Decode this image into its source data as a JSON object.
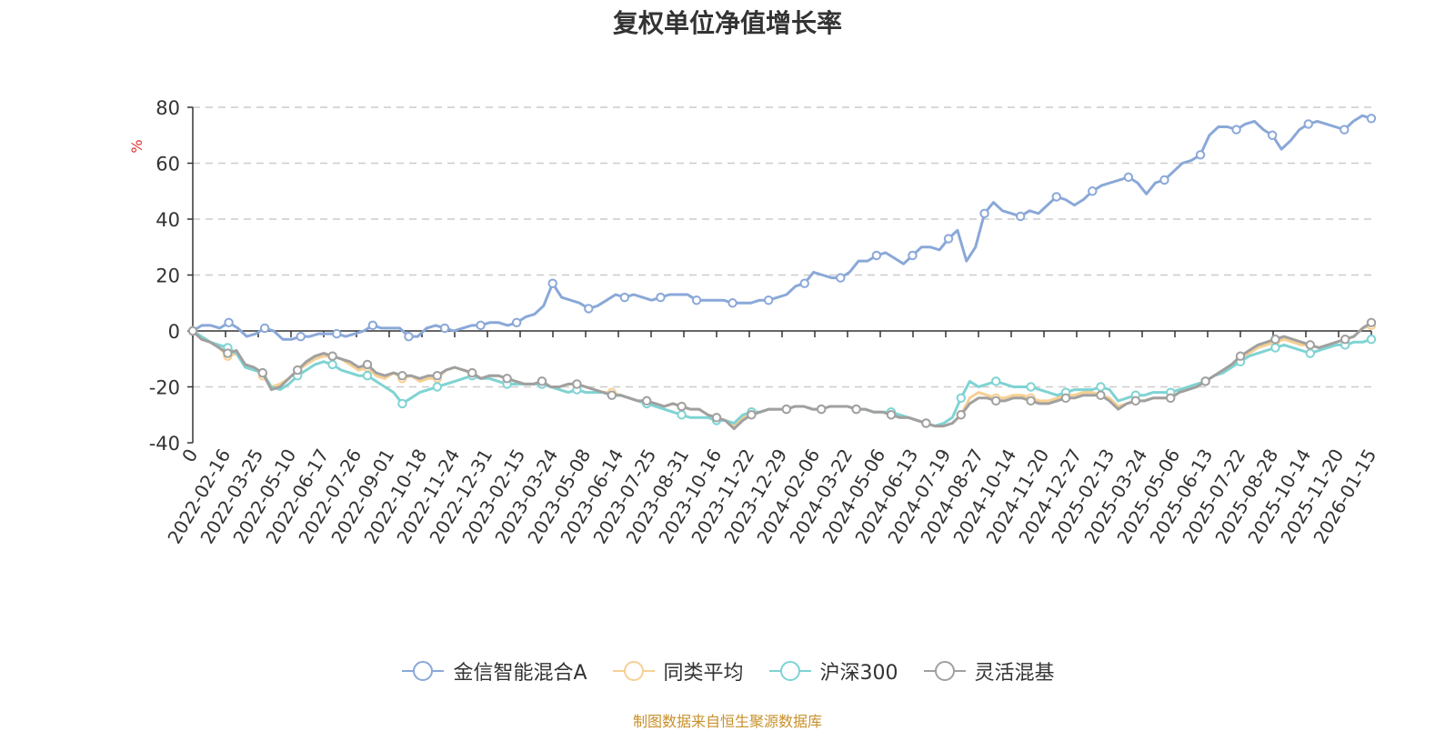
{
  "title": "复权单位净值增长率",
  "footer": "制图数据来自恒生聚源数据库",
  "chart_data": {
    "type": "line",
    "title": "复权单位净值增长率",
    "ylabel": "%",
    "ylim": [
      -40,
      80
    ],
    "yticks": [
      80,
      60,
      40,
      20,
      0,
      -20,
      -40
    ],
    "grid": true,
    "legend_position": "bottom",
    "xticks": [
      "0",
      "2022-02-16",
      "2022-03-25",
      "2022-05-10",
      "2022-06-17",
      "2022-07-26",
      "2022-09-01",
      "2022-10-18",
      "2022-11-24",
      "2022-12-31",
      "2023-02-15",
      "2023-03-24",
      "2023-05-08",
      "2023-06-14",
      "2023-07-25",
      "2023-08-31",
      "2023-10-16",
      "2023-11-22",
      "2023-12-29",
      "2024-02-06",
      "2024-03-22",
      "2024-05-06",
      "2024-06-13",
      "2024-07-19",
      "2024-08-27",
      "2024-10-14",
      "2024-11-20",
      "2024-12-27",
      "2025-02-13",
      "2025-03-24",
      "2025-05-06",
      "2025-06-13",
      "2025-07-22",
      "2025-08-28",
      "2025-10-14",
      "2025-11-20",
      "2026-01-15"
    ],
    "series": [
      {
        "name": "金信智能混合A",
        "color": "#8aa8d8",
        "values": [
          0,
          2,
          2,
          1,
          3,
          1,
          -2,
          -1,
          1,
          0,
          -3,
          -3,
          -2,
          -2,
          -1,
          -1,
          -1,
          -2,
          -1,
          0,
          2,
          1,
          1,
          1,
          -2,
          -2,
          1,
          2,
          1,
          0,
          1,
          2,
          2,
          3,
          3,
          2,
          3,
          5,
          6,
          9,
          17,
          12,
          11,
          10,
          8,
          9,
          11,
          13,
          12,
          13,
          12,
          11,
          12,
          13,
          13,
          13,
          11,
          11,
          11,
          11,
          10,
          10,
          10,
          11,
          11,
          12,
          13,
          16,
          17,
          21,
          20,
          19,
          19,
          21,
          25,
          25,
          27,
          28,
          26,
          24,
          27,
          30,
          30,
          29,
          33,
          36,
          25,
          30,
          42,
          46,
          43,
          42,
          41,
          43,
          42,
          45,
          48,
          47,
          45,
          47,
          50,
          52,
          53,
          54,
          55,
          53,
          49,
          53,
          54,
          57,
          60,
          61,
          63,
          70,
          73,
          73,
          72,
          74,
          75,
          72,
          70,
          65,
          68,
          72,
          74,
          75,
          74,
          73,
          72,
          75,
          77,
          76
        ]
      },
      {
        "name": "同类平均",
        "color": "#f7cf93",
        "values": [
          0,
          -3,
          -4,
          -6,
          -9,
          -8,
          -12,
          -13,
          -16,
          -20,
          -19,
          -17,
          -14,
          -12,
          -10,
          -9,
          -9,
          -10,
          -12,
          -14,
          -13,
          -16,
          -17,
          -15,
          -17,
          -16,
          -18,
          -17,
          -17,
          -14,
          -13,
          -14,
          -15,
          -17,
          -16,
          -16,
          -17,
          -18,
          -19,
          -19,
          -18,
          -20,
          -20,
          -19,
          -19,
          -20,
          -21,
          -22,
          -22,
          -23,
          -24,
          -25,
          -25,
          -26,
          -27,
          -26,
          -27,
          -28,
          -28,
          -30,
          -31,
          -32,
          -34,
          -31,
          -29,
          -29,
          -28,
          -28,
          -28,
          -27,
          -27,
          -28,
          -28,
          -27,
          -27,
          -27,
          -28,
          -28,
          -29,
          -29,
          -30,
          -31,
          -31,
          -32,
          -33,
          -34,
          -34,
          -33,
          -30,
          -24,
          -22,
          -23,
          -24,
          -24,
          -23,
          -23,
          -24,
          -25,
          -25,
          -24,
          -23,
          -23,
          -22,
          -22,
          -23,
          -24,
          -27,
          -26,
          -25,
          -25,
          -24,
          -24,
          -24,
          -22,
          -21,
          -20,
          -18,
          -16,
          -14,
          -12,
          -10,
          -8,
          -6,
          -5,
          -4,
          -3,
          -4,
          -5,
          -5,
          -6,
          -5,
          -4,
          -3,
          -2,
          1,
          2
        ]
      },
      {
        "name": "沪深300",
        "color": "#7fd3d3",
        "values": [
          0,
          -2,
          -4,
          -5,
          -6,
          -8,
          -13,
          -14,
          -15,
          -20,
          -21,
          -19,
          -16,
          -14,
          -12,
          -11,
          -12,
          -14,
          -15,
          -16,
          -16,
          -18,
          -20,
          -22,
          -26,
          -24,
          -22,
          -21,
          -20,
          -19,
          -18,
          -17,
          -16,
          -17,
          -17,
          -18,
          -19,
          -19,
          -19,
          -19,
          -19,
          -20,
          -21,
          -22,
          -21,
          -22,
          -22,
          -22,
          -23,
          -23,
          -24,
          -25,
          -26,
          -27,
          -28,
          -29,
          -30,
          -31,
          -31,
          -31,
          -32,
          -32,
          -33,
          -30,
          -29,
          -29,
          -28,
          -28,
          -28,
          -27,
          -27,
          -28,
          -28,
          -27,
          -27,
          -27,
          -28,
          -28,
          -29,
          -29,
          -29,
          -30,
          -31,
          -32,
          -33,
          -34,
          -33,
          -31,
          -24,
          -18,
          -20,
          -19,
          -18,
          -19,
          -20,
          -20,
          -20,
          -21,
          -22,
          -23,
          -22,
          -21,
          -21,
          -21,
          -20,
          -21,
          -25,
          -24,
          -23,
          -23,
          -22,
          -22,
          -22,
          -21,
          -20,
          -19,
          -18,
          -16,
          -15,
          -13,
          -11,
          -9,
          -8,
          -7,
          -6,
          -5,
          -6,
          -7,
          -8,
          -7,
          -6,
          -5,
          -5,
          -4,
          -4,
          -3
        ]
      },
      {
        "name": "灵活混基",
        "color": "#a0a0a0",
        "values": [
          0,
          -3,
          -4,
          -6,
          -8,
          -7,
          -12,
          -13,
          -15,
          -21,
          -20,
          -17,
          -14,
          -11,
          -9,
          -8,
          -9,
          -10,
          -11,
          -13,
          -12,
          -15,
          -16,
          -15,
          -16,
          -16,
          -17,
          -16,
          -16,
          -14,
          -13,
          -14,
          -15,
          -17,
          -16,
          -16,
          -17,
          -18,
          -19,
          -19,
          -18,
          -20,
          -20,
          -19,
          -19,
          -20,
          -21,
          -22,
          -23,
          -23,
          -24,
          -25,
          -25,
          -26,
          -27,
          -26,
          -27,
          -28,
          -28,
          -30,
          -31,
          -32,
          -35,
          -32,
          -30,
          -29,
          -28,
          -28,
          -28,
          -27,
          -27,
          -28,
          -28,
          -27,
          -27,
          -27,
          -28,
          -28,
          -29,
          -29,
          -30,
          -31,
          -31,
          -32,
          -33,
          -34,
          -34,
          -33,
          -30,
          -26,
          -24,
          -24,
          -25,
          -25,
          -24,
          -24,
          -25,
          -26,
          -26,
          -25,
          -24,
          -24,
          -23,
          -23,
          -23,
          -25,
          -28,
          -26,
          -25,
          -25,
          -24,
          -24,
          -24,
          -22,
          -21,
          -20,
          -18,
          -16,
          -14,
          -12,
          -9,
          -7,
          -5,
          -4,
          -3,
          -2,
          -3,
          -4,
          -5,
          -6,
          -5,
          -4,
          -3,
          -2,
          1,
          3
        ]
      }
    ]
  }
}
